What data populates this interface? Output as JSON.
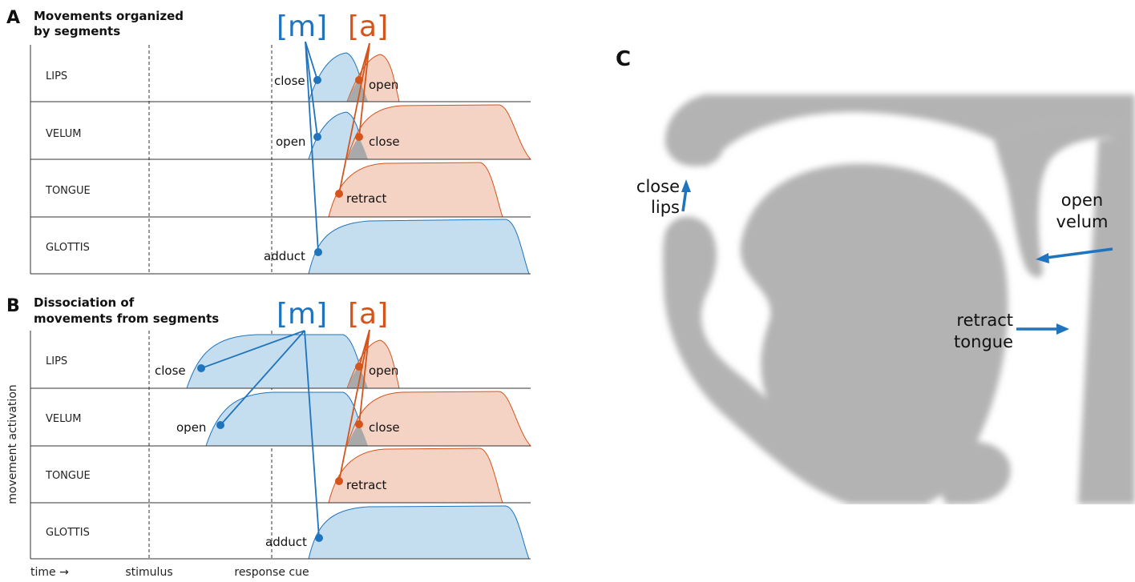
{
  "colors": {
    "m_line": "#1f74bd",
    "m_fill": "#c4ddef",
    "a_line": "#d4541c",
    "a_fill": "#f5d3c4",
    "overlap_fill": "#a9a9a9",
    "vocal_tract": "#b3b3b3"
  },
  "panel_a": {
    "letter": "A",
    "title_line1": "Movements organized",
    "title_line2": "by segments",
    "segment_m": "[m]",
    "segment_a": "[a]"
  },
  "panel_b": {
    "letter": "B",
    "title_line1": "Dissociation of",
    "title_line2": "movements from segments",
    "segment_m": "[m]",
    "segment_a": "[a]",
    "ylabel": "movement activation"
  },
  "panel_c": {
    "letter": "C",
    "labels": {
      "close": "close",
      "lips": "lips",
      "open": "open",
      "velum": "velum",
      "retract": "retract",
      "tongue": "tongue"
    },
    "icons": [
      "arrow-icon"
    ]
  },
  "rows": [
    "LIPS",
    "VELUM",
    "TONGUE",
    "GLOTTIS"
  ],
  "movements": {
    "close": "close",
    "open": "open",
    "retract": "retract",
    "adduct": "adduct"
  },
  "axis": {
    "time": "time →",
    "stimulus": "stimulus",
    "response_cue": "response cue"
  }
}
